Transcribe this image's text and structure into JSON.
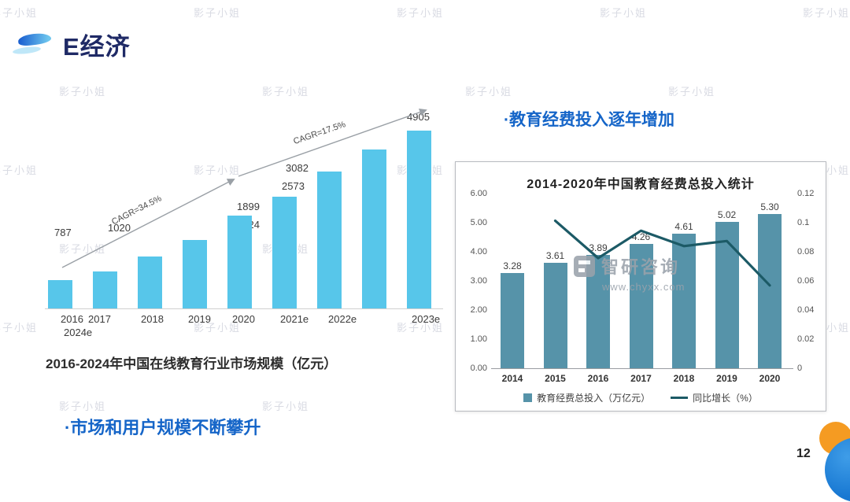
{
  "colors": {
    "accent_blue": "#1565C8",
    "title_navy": "#1F2A66",
    "bar_light_blue": "#57C6EA",
    "bar_teal": "#5693A9",
    "line_dark_teal": "#1C5A66",
    "arrow_gray": "#9AA0A6",
    "orange": "#F59B22",
    "corner_blue": "#1878D2",
    "watermark_gray": "#C9CCD8"
  },
  "header": {
    "title": "E经济"
  },
  "watermark_text": "影子小姐",
  "page_number": "12",
  "left_panel": {
    "bullet": "·市场和用户规模不断攀升"
  },
  "right_panel": {
    "bullet": "·教育经费投入逐年增加"
  },
  "chart_data": [
    {
      "id": "online-edu-market",
      "type": "bar",
      "title": "2016-2024年中国在线教育行业市场规模（亿元）",
      "categories": [
        "2016",
        "2017",
        "2018",
        "2019",
        "2020",
        "2021e",
        "2022e",
        "2023e",
        "2024e"
      ],
      "values": [
        787,
        1020,
        1424,
        1899,
        2573,
        3082,
        3782,
        4393,
        4905
      ],
      "ylim": [
        0,
        5000
      ],
      "grid": false,
      "legend_position": "none",
      "annotations": [
        {
          "label": "CAGR=34.5%"
        },
        {
          "label": "CAGR=17.5%"
        }
      ]
    },
    {
      "id": "edu-funding",
      "type": "bar+line",
      "title": "2014-2020年中国教育经费总投入统计",
      "categories": [
        "2014",
        "2015",
        "2016",
        "2017",
        "2018",
        "2019",
        "2020"
      ],
      "series": [
        {
          "name": "教育经费总投入（万亿元）",
          "type": "bar",
          "axis": "left",
          "values": [
            3.28,
            3.61,
            3.89,
            4.26,
            4.61,
            5.02,
            5.3
          ]
        },
        {
          "name": "同比增长（%）",
          "type": "line",
          "axis": "right",
          "values": [
            null,
            0.1013,
            0.0757,
            0.0945,
            0.0839,
            0.0874,
            0.0569
          ]
        }
      ],
      "left_axis": {
        "range": [
          0,
          6
        ],
        "ticks": [
          "6.00",
          "5.00",
          "4.00",
          "3.00",
          "2.00",
          "1.00",
          "0.00"
        ]
      },
      "right_axis": {
        "range": [
          0,
          0.12
        ],
        "ticks": [
          "0.12",
          "0.1",
          "0.08",
          "0.06",
          "0.04",
          "0.02",
          "0"
        ]
      },
      "grid": false,
      "legend_position": "bottom",
      "source_watermark": {
        "brand": "智研咨询",
        "url": "www.chyxx.com"
      }
    }
  ]
}
